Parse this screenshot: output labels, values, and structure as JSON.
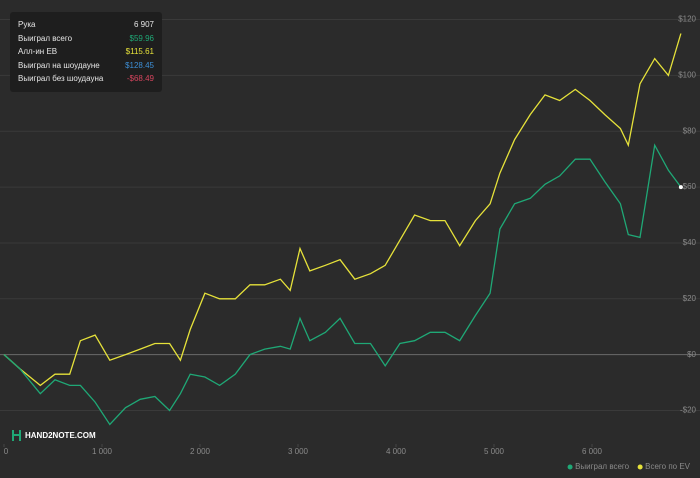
{
  "chart_data": {
    "type": "line",
    "x": [
      0,
      160,
      370,
      520,
      670,
      780,
      930,
      1080,
      1240,
      1390,
      1540,
      1690,
      1800,
      1900,
      2050,
      2200,
      2360,
      2510,
      2660,
      2820,
      2920,
      3020,
      3120,
      3280,
      3430,
      3580,
      3740,
      3890,
      4040,
      4190,
      4350,
      4500,
      4650,
      4810,
      4960,
      5060,
      5210,
      5370,
      5520,
      5670,
      5830,
      5980,
      6130,
      6290,
      6370,
      6490,
      6640,
      6780,
      6907
    ],
    "series": [
      {
        "name": "Выиграл всего",
        "color": "#1fa876",
        "values": [
          0,
          -5,
          -14,
          -9,
          -11,
          -11,
          -17,
          -25,
          -19,
          -16,
          -15,
          -20,
          -14,
          -7,
          -8,
          -11,
          -7,
          0,
          2,
          3,
          2,
          13,
          5,
          8,
          13,
          4,
          4,
          -4,
          4,
          5,
          8,
          8,
          5,
          14,
          22,
          45,
          54,
          56,
          61,
          64,
          70,
          70,
          62,
          54,
          43,
          42,
          75,
          66,
          60
        ]
      },
      {
        "name": "Всего по EV",
        "color": "#e6e23a",
        "values": [
          0,
          -5,
          -11,
          -7,
          -7,
          5,
          7,
          -2,
          0,
          2,
          4,
          4,
          -2,
          9,
          22,
          20,
          20,
          25,
          25,
          27,
          23,
          38,
          30,
          32,
          34,
          27,
          29,
          32,
          41,
          50,
          48,
          48,
          39,
          48,
          54,
          65,
          77,
          86,
          93,
          91,
          95,
          91,
          86,
          81,
          75,
          97,
          106,
          100,
          115
        ]
      }
    ],
    "xlim": [
      0,
      7000
    ],
    "xticks": [
      0,
      {
        "value": 1000,
        "label": "1 000"
      },
      {
        "value": 2000,
        "label": "2 000"
      },
      {
        "value": 3000,
        "label": "3 000"
      },
      {
        "value": 4000,
        "label": "4 000"
      },
      {
        "value": 5000,
        "label": "5 000"
      },
      {
        "value": 6000,
        "label": "6 000"
      }
    ],
    "ylim": [
      -32,
      127
    ],
    "yticks": [
      {
        "value": -20,
        "label": "-$20"
      },
      {
        "value": 0,
        "label": "$0"
      },
      {
        "value": 20,
        "label": "$20"
      },
      {
        "value": 40,
        "label": "$40"
      },
      {
        "value": 60,
        "label": "$60"
      },
      {
        "value": 80,
        "label": "$80"
      },
      {
        "value": 100,
        "label": "$100"
      },
      {
        "value": 120,
        "label": "$120"
      }
    ],
    "grid": true
  },
  "summary": [
    {
      "label": "Рука",
      "value": "6 907",
      "color": "#e6e6e6"
    },
    {
      "label": "Выиграл всего",
      "value": "$59.96",
      "color": "#1fa876"
    },
    {
      "label": "Алл-ин EB",
      "value": "$115.61",
      "color": "#e6e23a"
    },
    {
      "label": "Выиграл на шоудауне",
      "value": "$128.45",
      "color": "#3d8fd6"
    },
    {
      "label": "Выиграл без шоудауна",
      "value": "-$68.49",
      "color": "#d6455e"
    }
  ],
  "watermark": "HAND2NOTE.COM"
}
